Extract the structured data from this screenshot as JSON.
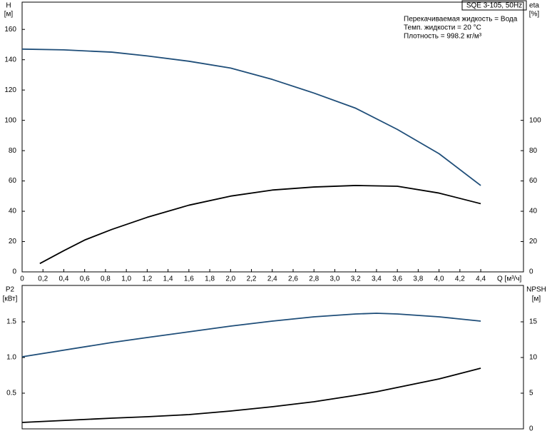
{
  "chart_data": [
    {
      "type": "line",
      "title": "SQE 3-105, 50Hz",
      "notes": [
        "Перекачиваемая жидкость = Вода",
        "Темп. жидкости = 20 °C",
        "Плотность = 998.2 кг/м³"
      ],
      "ylabel": "H",
      "yunit": "[м]",
      "y2label": "eta",
      "y2unit": "[%]",
      "xlabel": "Q [м³/ч]",
      "xlim": [
        0,
        4.81
      ],
      "xticks": [
        0,
        {
          "value": 0.2,
          "label": "0,2"
        },
        {
          "value": 0.4,
          "label": "0,4"
        },
        {
          "value": 0.6,
          "label": "0,6"
        },
        {
          "value": 0.8,
          "label": "0,8"
        },
        {
          "value": 1.0,
          "label": "1,0"
        },
        {
          "value": 1.2,
          "label": "1,2"
        },
        {
          "value": 1.4,
          "label": "1,4"
        },
        {
          "value": 1.6,
          "label": "1,6"
        },
        {
          "value": 1.8,
          "label": "1,8"
        },
        {
          "value": 2.0,
          "label": "2,0"
        },
        {
          "value": 2.2,
          "label": "2,2"
        },
        {
          "value": 2.4,
          "label": "2,4"
        },
        {
          "value": 2.6,
          "label": "2,6"
        },
        {
          "value": 2.8,
          "label": "2,8"
        },
        {
          "value": 3.0,
          "label": "3,0"
        },
        {
          "value": 3.2,
          "label": "3,2"
        },
        {
          "value": 3.4,
          "label": "3,4"
        },
        {
          "value": 3.6,
          "label": "3,6"
        },
        {
          "value": 3.8,
          "label": "3,8"
        },
        {
          "value": 4.0,
          "label": "4,0"
        },
        {
          "value": 4.2,
          "label": "4,2"
        },
        {
          "value": 4.4,
          "label": "4,4"
        }
      ],
      "ylim": [
        0,
        178
      ],
      "yticks": [
        0,
        20,
        40,
        60,
        80,
        100,
        120,
        140,
        160
      ],
      "y2lim": [
        0,
        178
      ],
      "y2ticks": [
        0,
        20,
        40,
        60,
        80,
        100
      ],
      "series": [
        {
          "color": "#1f4e79",
          "x": [
            0,
            0.4,
            0.86,
            1.2,
            1.6,
            2.0,
            2.4,
            2.8,
            3.2,
            3.6,
            4.0,
            4.4
          ],
          "values": [
            147,
            146.5,
            145,
            142.5,
            139,
            134.5,
            127,
            118,
            108,
            94,
            78,
            57
          ]
        },
        {
          "color": "#000000",
          "axis": "y2",
          "x": [
            0.17,
            0.4,
            0.6,
            0.86,
            1.2,
            1.6,
            2.0,
            2.4,
            2.8,
            3.2,
            3.6,
            4.0,
            4.4
          ],
          "values": [
            5.5,
            14,
            21,
            28,
            36,
            44,
            50,
            54,
            56,
            57,
            56.5,
            52,
            45
          ]
        }
      ]
    },
    {
      "type": "line",
      "ylabel": "P2",
      "yunit": "[кВт]",
      "y2label": "NPSH",
      "y2unit": "[м]",
      "xlim": [
        0,
        4.81
      ],
      "ylim": [
        0,
        2.01
      ],
      "yticks": [
        0.5,
        {
          "value": 1,
          "label": "1.0"
        },
        1.5
      ],
      "y2lim": [
        0,
        20.1
      ],
      "y2ticks": [
        0,
        5,
        10,
        15
      ],
      "series": [
        {
          "color": "#1f4e79",
          "x": [
            0,
            0.86,
            1.2,
            1.6,
            2.0,
            2.4,
            2.8,
            3.2,
            3.4,
            3.6,
            4.0,
            4.4
          ],
          "values": [
            1.01,
            1.21,
            1.28,
            1.36,
            1.44,
            1.51,
            1.57,
            1.61,
            1.62,
            1.61,
            1.57,
            1.51
          ]
        },
        {
          "color": "#000000",
          "axis": "y2",
          "x": [
            0,
            0.86,
            1.2,
            1.6,
            2.0,
            2.4,
            2.8,
            3.2,
            3.4,
            3.6,
            4.0,
            4.4
          ],
          "values": [
            0.9,
            1.5,
            1.7,
            2.0,
            2.5,
            3.1,
            3.8,
            4.7,
            5.2,
            5.8,
            7.0,
            8.5
          ]
        }
      ]
    }
  ]
}
